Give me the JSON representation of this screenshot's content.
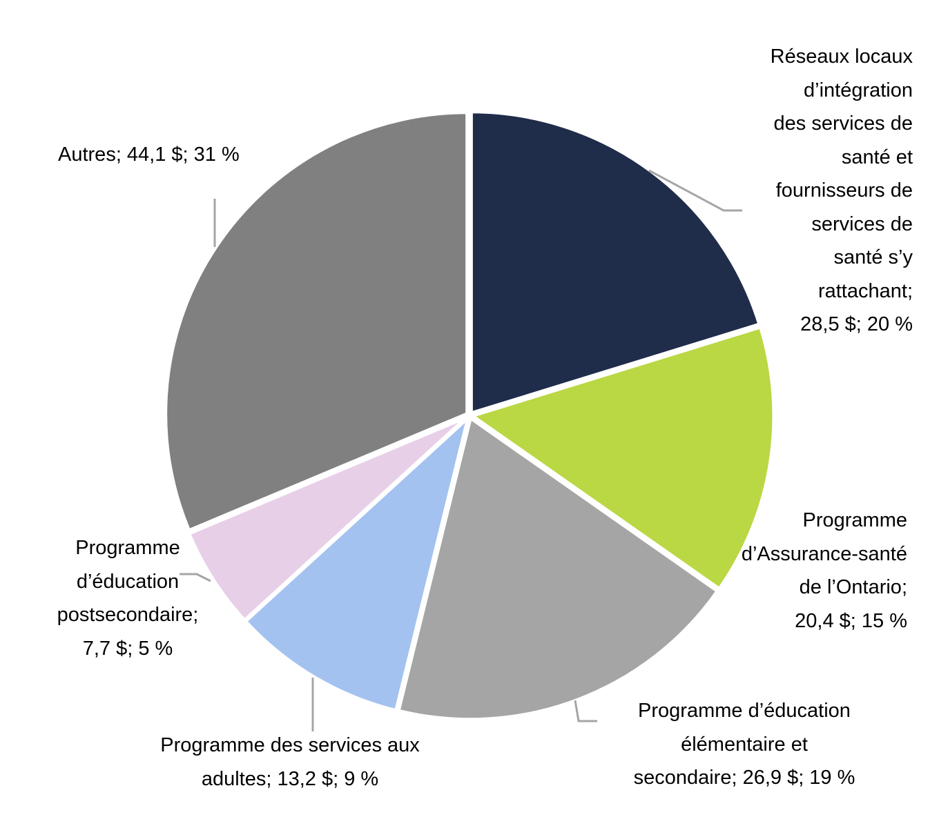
{
  "chart_data": {
    "type": "pie",
    "title": "",
    "units": "$",
    "start_angle": "12 o'clock, clockwise",
    "slices": [
      {
        "name": "Réseaux locaux d’intégration des services de santé et fournisseurs de services de santé s’y rattachant",
        "value": 28.5,
        "percent": 20,
        "color": "#1f2c4a",
        "label_lines": [
          "Réseaux locaux",
          "d’intégration",
          "des services de",
          "santé et",
          "fournisseurs de",
          "services de",
          "santé s’y",
          "rattachant;",
          "28,5 $; 20 %"
        ]
      },
      {
        "name": "Programme d’Assurance-santé de l’Ontario",
        "value": 20.4,
        "percent": 15,
        "color": "#bad744",
        "label_lines": [
          "Programme",
          "d’Assurance-santé",
          "de l’Ontario;",
          "20,4 $; 15 %"
        ]
      },
      {
        "name": "Programme d’éducation élémentaire et secondaire",
        "value": 26.9,
        "percent": 19,
        "color": "#a5a5a5",
        "label_lines": [
          "Programme d’éducation",
          "élémentaire et",
          "secondaire; 26,9 $; 19 %"
        ]
      },
      {
        "name": "Programme des services aux adultes",
        "value": 13.2,
        "percent": 9,
        "color": "#a4c2f0",
        "label_lines": [
          "Programme des services aux",
          "adultes; 13,2 $; 9 %"
        ]
      },
      {
        "name": "Programme d’éducation postsecondaire",
        "value": 7.7,
        "percent": 5,
        "color": "#e8cfe8",
        "label_lines": [
          "Programme",
          "d’éducation",
          "postsecondaire;",
          "7,7 $; 5 %"
        ]
      },
      {
        "name": "Autres",
        "value": 44.1,
        "percent": 31,
        "color": "#808080",
        "label_lines": [
          "Autres; 44,1 $; 31 %"
        ]
      }
    ]
  }
}
